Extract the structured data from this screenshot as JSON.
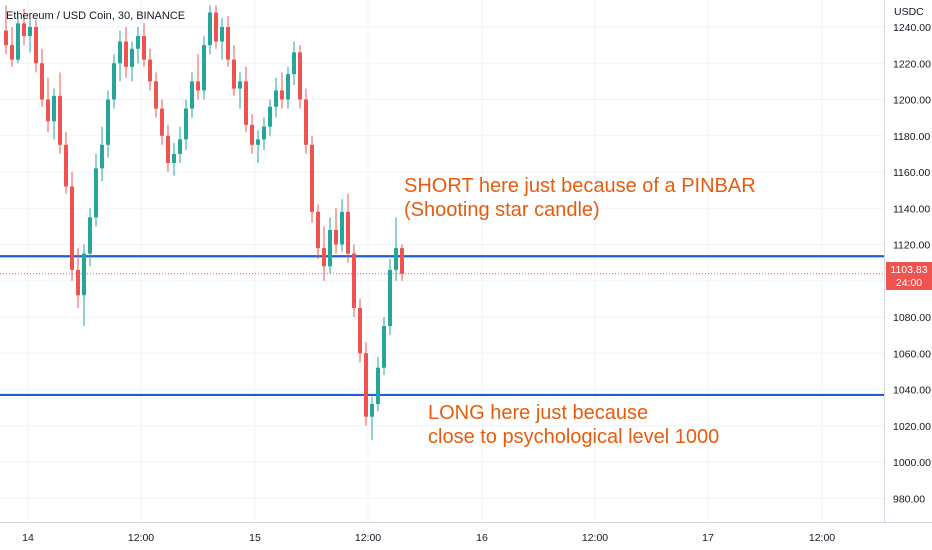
{
  "header": {
    "symbol": "Ethereum / USD Coin, 30, BINANCE"
  },
  "colors": {
    "up": "#26a69a",
    "down": "#ef5350",
    "level_line": "#1c5fd4",
    "annotation": "#e65c0c",
    "grid": "#f0f3fa",
    "axis_text": "#131722"
  },
  "chart_data": {
    "type": "candlestick",
    "currency_label": "USDC",
    "ylim": [
      960,
      1250
    ],
    "y_ticks": [
      "1240.00",
      "1220.00",
      "1200.00",
      "1180.00",
      "1160.00",
      "1140.00",
      "1120.00",
      "1100.00",
      "1080.00",
      "1060.00",
      "1040.00",
      "1020.00",
      "1000.00",
      "980.00"
    ],
    "x_ticks": [
      "14",
      "12:00",
      "15",
      "12:00",
      "16",
      "12:00",
      "17",
      "12:00"
    ],
    "last_price": "1103.83",
    "countdown": "24:00",
    "horizontal_levels": [
      1113.5,
      1037
    ],
    "candles": [
      [
        1238,
        1252,
        1225,
        1230
      ],
      [
        1230,
        1240,
        1218,
        1222
      ],
      [
        1222,
        1246,
        1220,
        1242
      ],
      [
        1242,
        1250,
        1230,
        1235
      ],
      [
        1235,
        1245,
        1226,
        1240
      ],
      [
        1240,
        1244,
        1215,
        1220
      ],
      [
        1220,
        1228,
        1196,
        1200
      ],
      [
        1200,
        1212,
        1182,
        1188
      ],
      [
        1188,
        1206,
        1178,
        1202
      ],
      [
        1202,
        1215,
        1170,
        1175
      ],
      [
        1175,
        1182,
        1148,
        1152
      ],
      [
        1152,
        1160,
        1100,
        1106
      ],
      [
        1106,
        1118,
        1085,
        1092
      ],
      [
        1092,
        1120,
        1075,
        1115
      ],
      [
        1115,
        1140,
        1108,
        1135
      ],
      [
        1135,
        1170,
        1130,
        1162
      ],
      [
        1162,
        1185,
        1155,
        1175
      ],
      [
        1175,
        1205,
        1168,
        1200
      ],
      [
        1200,
        1225,
        1195,
        1220
      ],
      [
        1220,
        1238,
        1210,
        1232
      ],
      [
        1232,
        1240,
        1212,
        1218
      ],
      [
        1218,
        1232,
        1210,
        1228
      ],
      [
        1228,
        1240,
        1220,
        1235
      ],
      [
        1235,
        1242,
        1218,
        1222
      ],
      [
        1222,
        1228,
        1205,
        1210
      ],
      [
        1210,
        1215,
        1190,
        1195
      ],
      [
        1195,
        1200,
        1175,
        1180
      ],
      [
        1180,
        1186,
        1160,
        1165
      ],
      [
        1165,
        1176,
        1158,
        1170
      ],
      [
        1170,
        1185,
        1165,
        1178
      ],
      [
        1178,
        1200,
        1172,
        1195
      ],
      [
        1195,
        1215,
        1190,
        1210
      ],
      [
        1210,
        1225,
        1200,
        1205
      ],
      [
        1205,
        1235,
        1200,
        1230
      ],
      [
        1230,
        1252,
        1225,
        1248
      ],
      [
        1248,
        1252,
        1228,
        1232
      ],
      [
        1232,
        1245,
        1222,
        1240
      ],
      [
        1240,
        1246,
        1218,
        1222
      ],
      [
        1222,
        1230,
        1202,
        1206
      ],
      [
        1206,
        1215,
        1195,
        1210
      ],
      [
        1210,
        1218,
        1182,
        1186
      ],
      [
        1186,
        1192,
        1170,
        1175
      ],
      [
        1175,
        1183,
        1165,
        1178
      ],
      [
        1178,
        1190,
        1172,
        1185
      ],
      [
        1185,
        1200,
        1180,
        1196
      ],
      [
        1196,
        1212,
        1190,
        1205
      ],
      [
        1205,
        1215,
        1195,
        1200
      ],
      [
        1200,
        1218,
        1195,
        1214
      ],
      [
        1214,
        1232,
        1208,
        1226
      ],
      [
        1226,
        1230,
        1195,
        1200
      ],
      [
        1200,
        1206,
        1170,
        1175
      ],
      [
        1175,
        1180,
        1132,
        1138
      ],
      [
        1138,
        1142,
        1112,
        1118
      ],
      [
        1118,
        1130,
        1100,
        1108
      ],
      [
        1108,
        1135,
        1104,
        1128
      ],
      [
        1128,
        1140,
        1115,
        1120
      ],
      [
        1120,
        1145,
        1116,
        1138
      ],
      [
        1138,
        1148,
        1110,
        1115
      ],
      [
        1115,
        1120,
        1080,
        1085
      ],
      [
        1085,
        1090,
        1055,
        1060
      ],
      [
        1060,
        1066,
        1020,
        1025
      ],
      [
        1025,
        1036,
        1012,
        1032
      ],
      [
        1032,
        1058,
        1028,
        1052
      ],
      [
        1052,
        1080,
        1048,
        1075
      ],
      [
        1075,
        1112,
        1070,
        1106
      ],
      [
        1106,
        1135,
        1100,
        1118
      ],
      [
        1118,
        1120,
        1100,
        1103.83
      ]
    ]
  },
  "annotations": {
    "short": {
      "line1": "SHORT here just because of a PINBAR",
      "line2": "(Shooting star candle)"
    },
    "long": {
      "line1": "LONG here just because",
      "line2": "close to psychological level 1000"
    }
  }
}
